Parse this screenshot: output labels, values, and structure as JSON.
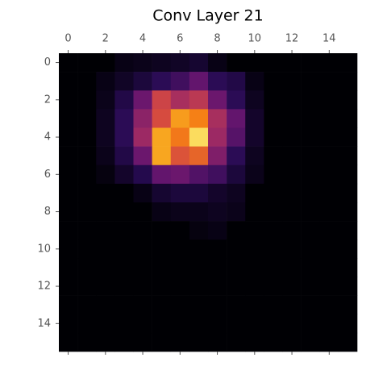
{
  "chart_data": {
    "type": "heatmap",
    "title": "Conv Layer 21",
    "colormap": "inferno",
    "xlim": [
      -0.5,
      15.5
    ],
    "ylim": [
      15.5,
      -0.5
    ],
    "clim": [
      0,
      1
    ],
    "xticks": [
      0,
      2,
      4,
      6,
      8,
      10,
      12,
      14
    ],
    "yticks": [
      0,
      2,
      4,
      6,
      8,
      10,
      12,
      14
    ],
    "values": [
      [
        0,
        0,
        0,
        0.03,
        0.04,
        0.05,
        0.06,
        0.08,
        0.03,
        0,
        0,
        0,
        0,
        0,
        0,
        0
      ],
      [
        0,
        0,
        0.03,
        0.06,
        0.1,
        0.15,
        0.2,
        0.28,
        0.15,
        0.12,
        0.03,
        0,
        0,
        0,
        0,
        0
      ],
      [
        0,
        0,
        0.04,
        0.12,
        0.3,
        0.55,
        0.45,
        0.5,
        0.3,
        0.15,
        0.05,
        0,
        0,
        0,
        0,
        0
      ],
      [
        0,
        0,
        0.05,
        0.15,
        0.38,
        0.58,
        0.78,
        0.72,
        0.45,
        0.28,
        0.07,
        0,
        0,
        0,
        0,
        0
      ],
      [
        0,
        0,
        0.05,
        0.15,
        0.42,
        0.8,
        0.7,
        0.92,
        0.42,
        0.25,
        0.07,
        0,
        0,
        0,
        0,
        0
      ],
      [
        0,
        0,
        0.04,
        0.12,
        0.3,
        0.8,
        0.6,
        0.65,
        0.35,
        0.15,
        0.05,
        0,
        0,
        0,
        0,
        0
      ],
      [
        0,
        0,
        0.02,
        0.07,
        0.13,
        0.28,
        0.3,
        0.24,
        0.2,
        0.1,
        0.04,
        0,
        0,
        0,
        0,
        0
      ],
      [
        0,
        0,
        0,
        0,
        0.03,
        0.08,
        0.1,
        0.1,
        0.07,
        0.05,
        0,
        0,
        0,
        0,
        0,
        0
      ],
      [
        0,
        0,
        0,
        0,
        0,
        0.03,
        0.04,
        0.04,
        0.05,
        0.04,
        0,
        0,
        0,
        0,
        0,
        0
      ],
      [
        0,
        0,
        0,
        0,
        0,
        0,
        0,
        0.02,
        0.03,
        0,
        0,
        0,
        0,
        0,
        0,
        0
      ],
      [
        0,
        0,
        0,
        0,
        0,
        0,
        0,
        0,
        0,
        0,
        0,
        0,
        0,
        0,
        0,
        0
      ],
      [
        0,
        0,
        0,
        0,
        0,
        0,
        0,
        0,
        0,
        0,
        0,
        0,
        0,
        0,
        0,
        0
      ],
      [
        0,
        0,
        0,
        0,
        0,
        0,
        0,
        0,
        0,
        0,
        0,
        0,
        0,
        0,
        0,
        0
      ],
      [
        0,
        0,
        0,
        0,
        0,
        0,
        0,
        0,
        0,
        0,
        0,
        0,
        0,
        0,
        0,
        0
      ],
      [
        0,
        0,
        0,
        0,
        0,
        0,
        0,
        0,
        0,
        0,
        0,
        0,
        0,
        0,
        0,
        0
      ],
      [
        0,
        0,
        0,
        0,
        0,
        0,
        0,
        0,
        0,
        0,
        0,
        0,
        0,
        0,
        0,
        0
      ]
    ]
  }
}
